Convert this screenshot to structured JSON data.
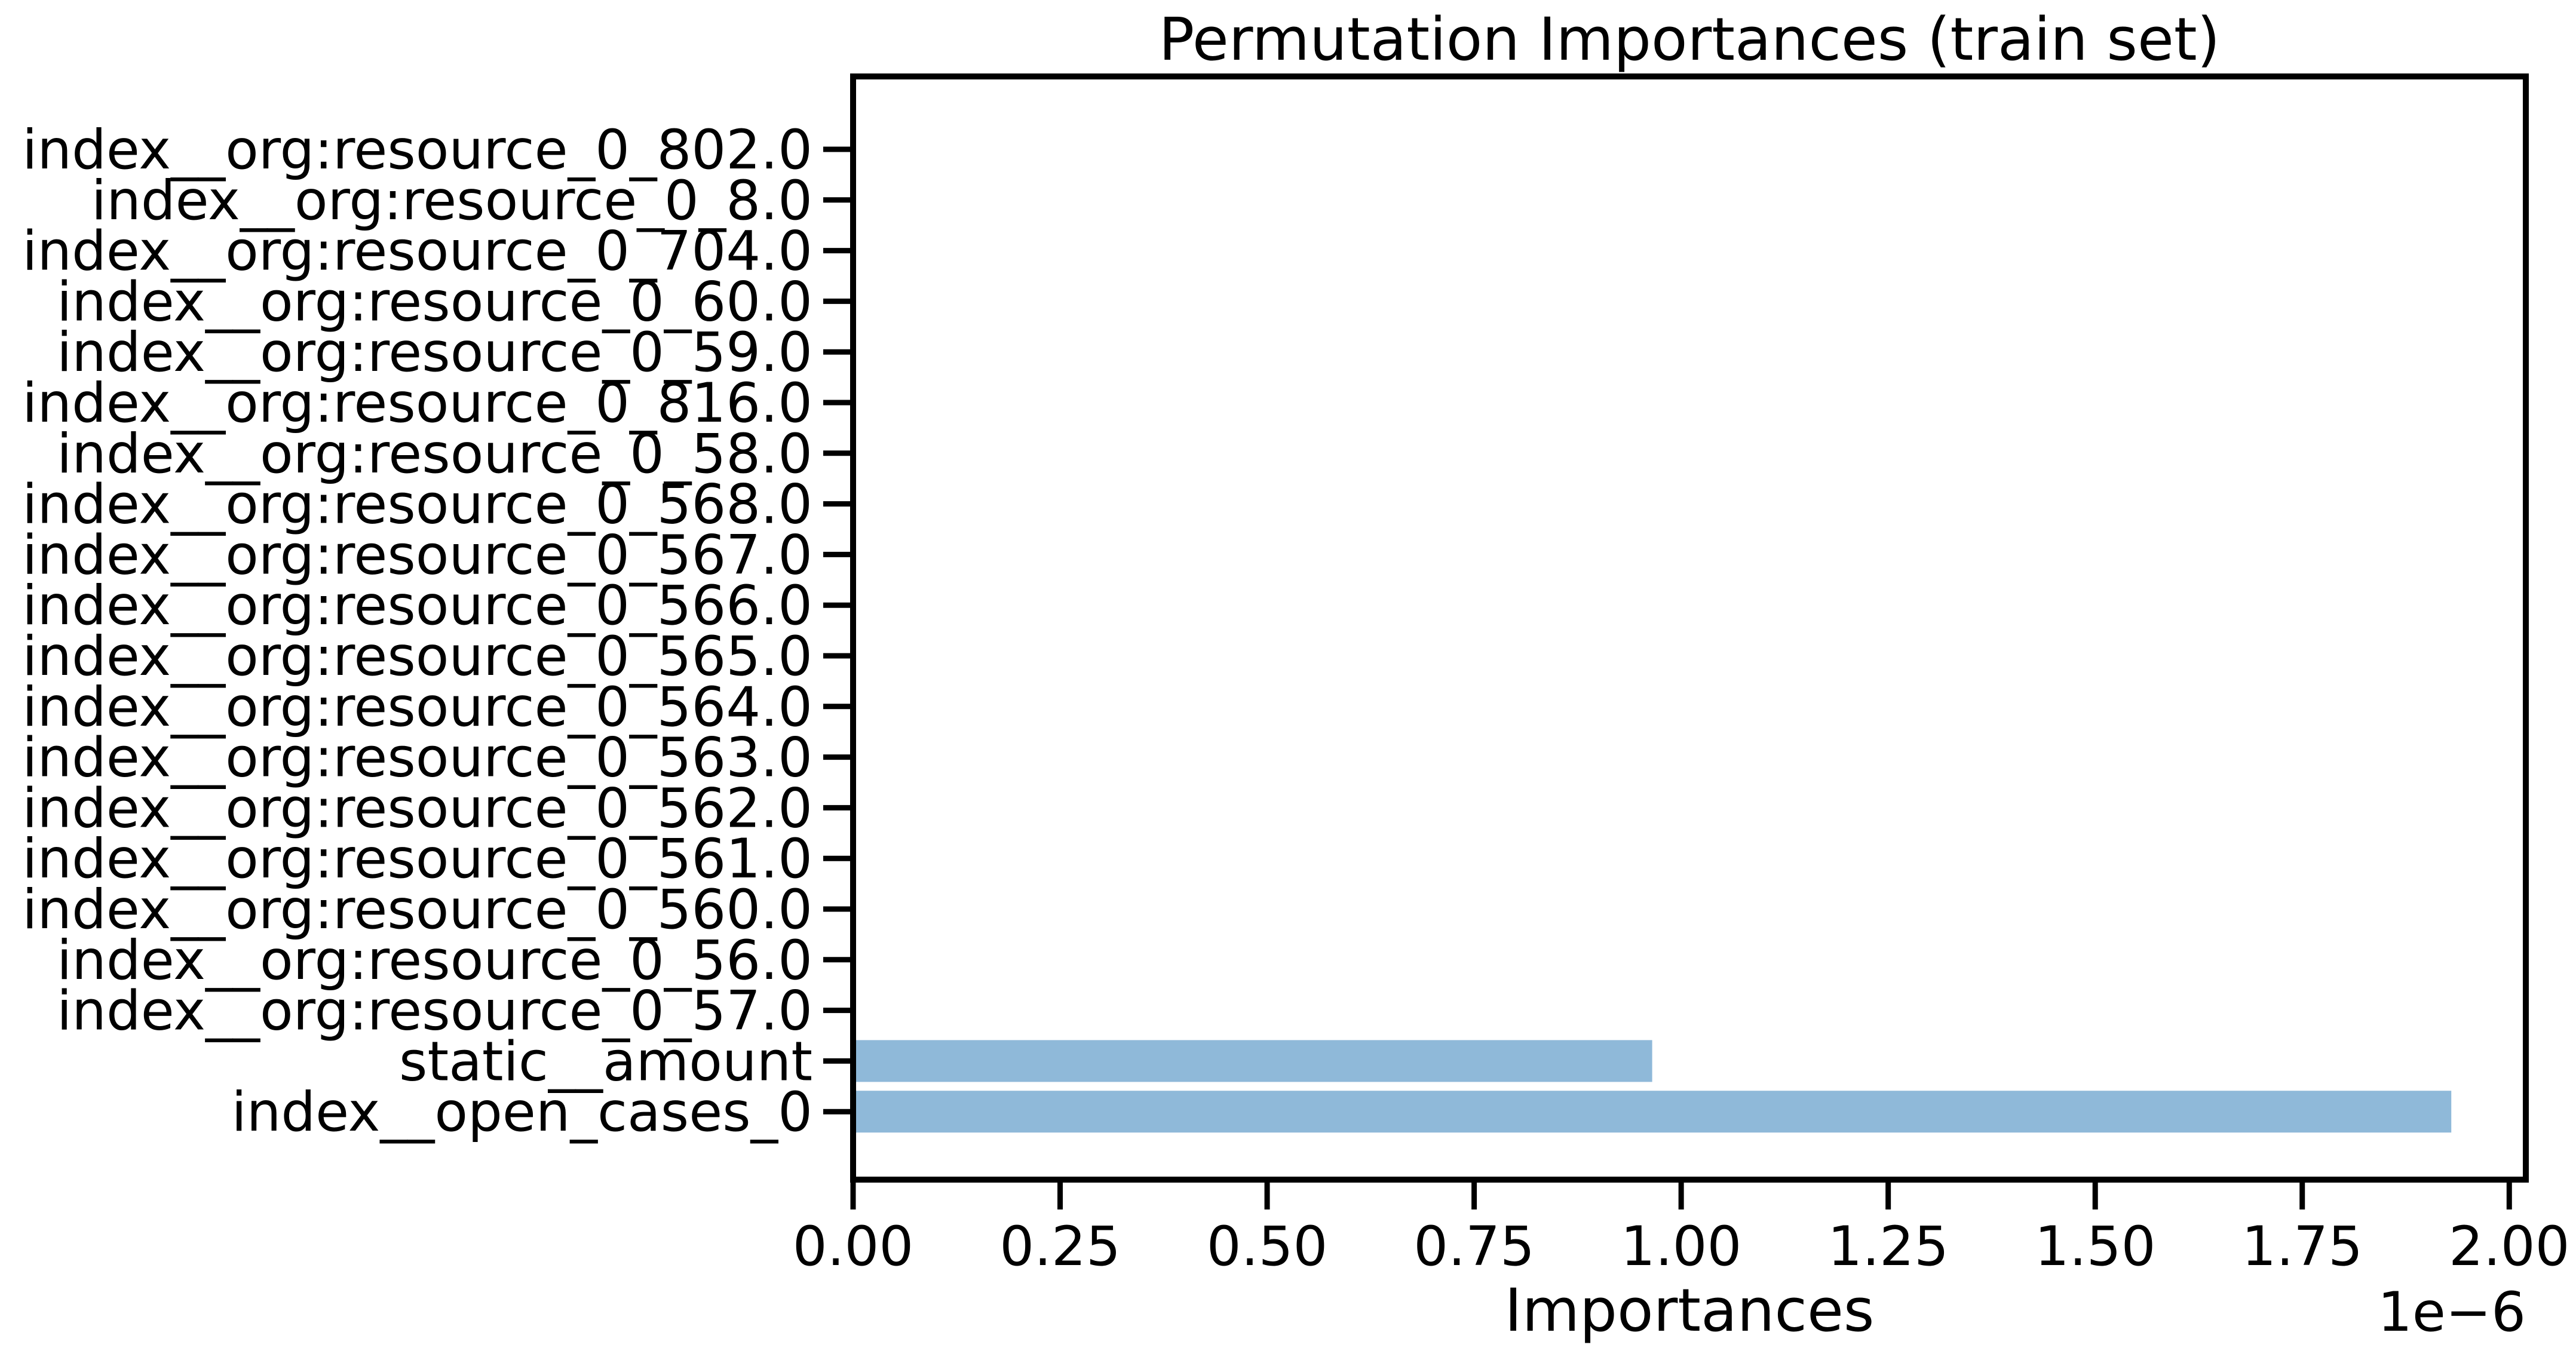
{
  "chart_data": {
    "type": "bar",
    "orientation": "horizontal",
    "title": "Permutation Importances (train set)",
    "xlabel": "Importances",
    "ylabel": "",
    "x_offset_label": "1e−6",
    "xlim": [
      0,
      2.02
    ],
    "x_ticks": [
      0.0,
      0.25,
      0.5,
      0.75,
      1.0,
      1.25,
      1.5,
      1.75,
      2.0
    ],
    "x_tick_labels": [
      "0.00",
      "0.25",
      "0.50",
      "0.75",
      "1.00",
      "1.25",
      "1.50",
      "1.75",
      "2.00"
    ],
    "categories": [
      "index__org:resource_0_802.0",
      "index__org:resource_0_8.0",
      "index__org:resource_0_704.0",
      "index__org:resource_0_60.0",
      "index__org:resource_0_59.0",
      "index__org:resource_0_816.0",
      "index__org:resource_0_58.0",
      "index__org:resource_0_568.0",
      "index__org:resource_0_567.0",
      "index__org:resource_0_566.0",
      "index__org:resource_0_565.0",
      "index__org:resource_0_564.0",
      "index__org:resource_0_563.0",
      "index__org:resource_0_562.0",
      "index__org:resource_0_561.0",
      "index__org:resource_0_560.0",
      "index__org:resource_0_56.0",
      "index__org:resource_0_57.0",
      "static__amount",
      "index__open_cases_0"
    ],
    "values": [
      0,
      0,
      0,
      0,
      0,
      0,
      0,
      0,
      0,
      0,
      0,
      0,
      0,
      0,
      0,
      0,
      0,
      0,
      0.965,
      1.93
    ],
    "bar_color": "#8fb9d9",
    "grid": false,
    "legend": "none"
  }
}
